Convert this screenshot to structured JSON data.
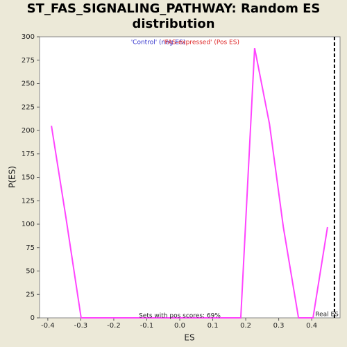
{
  "chart_data": {
    "type": "line",
    "title": "ST_FAS_SIGNALING_PATHWAY: Random ES distribution",
    "xlabel": "ES",
    "ylabel": "P(ES)",
    "x": [
      -0.389,
      -0.345,
      -0.299,
      0.185,
      0.227,
      0.272,
      0.314,
      0.36,
      0.404,
      0.448
    ],
    "series": [
      {
        "color": "#ff44ff",
        "values": [
          205,
          107,
          0,
          0,
          288,
          207,
          97,
          0,
          0,
          97
        ]
      }
    ],
    "xlim": [
      -0.425,
      0.486
    ],
    "xticks": [
      -0.4,
      -0.3,
      -0.2,
      -0.1,
      {
        "value": 0,
        "label": "0.0"
      },
      0.1,
      0.2,
      0.3,
      0.4
    ],
    "ylim": [
      0,
      300
    ],
    "yticks": [
      0,
      25,
      50,
      75,
      100,
      125,
      150,
      175,
      200,
      225,
      250,
      275,
      300
    ],
    "real_es": {
      "value": 0.469,
      "label": "Real ES"
    },
    "legend": [
      {
        "text": "'Control' (neg ES)",
        "color": "#3333cc"
      },
      {
        "text": "'FAS-expressed' (Pos ES)",
        "color": "#dd2222"
      }
    ],
    "footnote": "Sets with pos scores: 69%"
  }
}
